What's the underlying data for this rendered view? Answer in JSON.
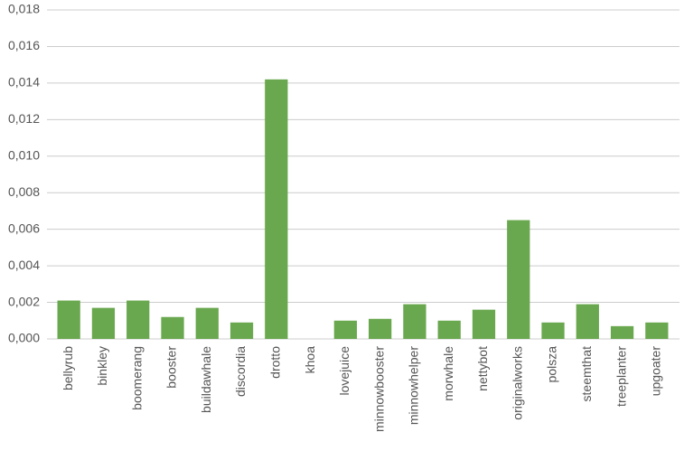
{
  "chart_data": {
    "type": "bar",
    "categories": [
      "bellyrub",
      "binkley",
      "boomerang",
      "booster",
      "buildawhale",
      "discordia",
      "drotto",
      "khoa",
      "lovejuice",
      "minnowbooster",
      "minnowhelper",
      "morwhale",
      "nettybot",
      "originalworks",
      "polsza",
      "steemthat",
      "treeplanter",
      "upgoater"
    ],
    "values": [
      0.0021,
      0.0017,
      0.0021,
      0.0012,
      0.0017,
      0.0009,
      0.0142,
      0,
      0.001,
      0.0011,
      0.0019,
      0.001,
      0.0016,
      0.0065,
      0.0009,
      0.0019,
      0.0007,
      0.0009
    ],
    "color": "#6aa84f",
    "ylim": [
      0,
      0.018
    ],
    "yticks": [
      {
        "value": 0,
        "label": "0,000"
      },
      {
        "value": 0.002,
        "label": "0,002"
      },
      {
        "value": 0.004,
        "label": "0,004"
      },
      {
        "value": 0.006,
        "label": "0,006"
      },
      {
        "value": 0.008,
        "label": "0,008"
      },
      {
        "value": 0.01,
        "label": "0,010"
      },
      {
        "value": 0.012,
        "label": "0,012"
      },
      {
        "value": 0.014,
        "label": "0,014"
      },
      {
        "value": 0.016,
        "label": "0,016"
      },
      {
        "value": 0.018,
        "label": "0,018"
      }
    ],
    "grid": true
  }
}
